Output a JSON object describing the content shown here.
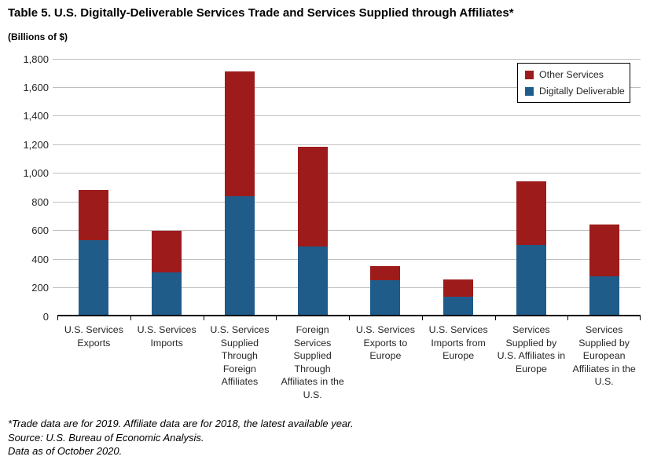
{
  "title": "Table 5. U.S. Digitally-Deliverable Services Trade and Services Supplied through Affiliates*",
  "units_label": "(Billions of $)",
  "legend": {
    "other_label": "Other Services",
    "digital_label": "Digitally Deliverable"
  },
  "colors": {
    "digitally_deliverable": "#1F5C8A",
    "other_services": "#9E1B1B",
    "gridline": "#BFBFBF",
    "axis": "#000000"
  },
  "footnotes": [
    "*Trade data are for 2019. Affiliate data are for 2018, the latest available year.",
    "Source: U.S. Bureau of Economic Analysis.",
    "Data as of October 2020."
  ],
  "chart_data": {
    "type": "bar",
    "stacked": true,
    "title": "Table 5. U.S. Digitally-Deliverable Services Trade and Services Supplied through Affiliates*",
    "ylabel": "(Billions of $)",
    "ylim": [
      0,
      1800
    ],
    "ytick_interval": 200,
    "ytick_labels": [
      "0",
      "200",
      "400",
      "600",
      "800",
      "1,000",
      "1,200",
      "1,400",
      "1,600",
      "1,800"
    ],
    "grid": true,
    "legend_position": "top-right",
    "categories": [
      "U.S. Services Exports",
      "U.S. Services Imports",
      "U.S. Services Supplied Through Foreign Affiliates",
      "Foreign Services Supplied Through Affiliates in the U.S.",
      "U.S. Services Exports to Europe",
      "U.S. Services Imports from Europe",
      "Services Supplied by U.S. Affiliates in Europe",
      "Services Supplied by European Affiliates in the U.S."
    ],
    "series": [
      {
        "name": "Digitally Deliverable",
        "color": "#1F5C8A",
        "values": [
          520,
          295,
          830,
          475,
          240,
          125,
          487,
          270
        ]
      },
      {
        "name": "Other Services",
        "color": "#9E1B1B",
        "values": [
          355,
          290,
          870,
          700,
          100,
          120,
          448,
          362
        ]
      }
    ],
    "totals": [
      875,
      585,
      1700,
      1175,
      340,
      245,
      935,
      632
    ]
  }
}
